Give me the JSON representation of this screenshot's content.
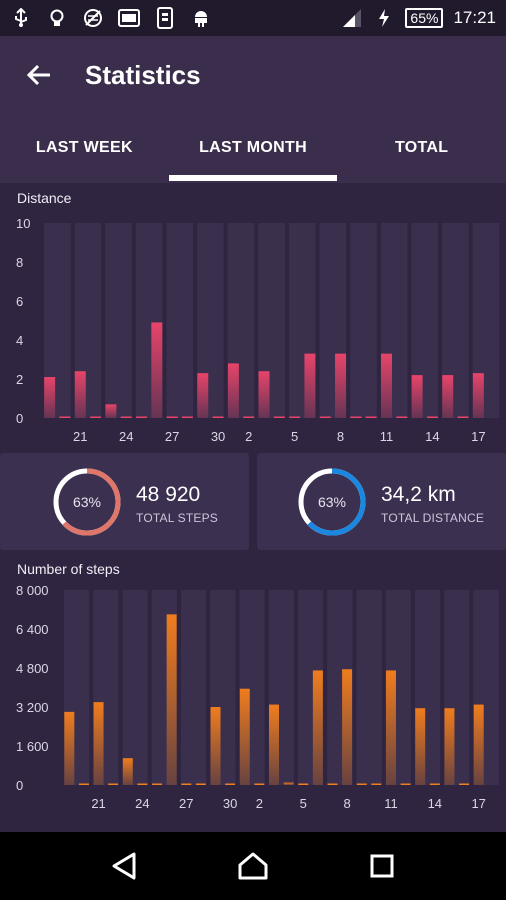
{
  "status_bar": {
    "battery": "65%",
    "time": "17:21",
    "icons": [
      "usb-icon",
      "lightbulb-icon",
      "no-network-icon",
      "fk-app-icon",
      "phone-data-icon",
      "android-icon",
      "signal-icon",
      "charging-icon"
    ]
  },
  "header": {
    "title": "Statistics",
    "back_icon": "arrow-left-icon"
  },
  "tabs": [
    {
      "label": "LAST WEEK",
      "active": false
    },
    {
      "label": "LAST MONTH",
      "active": true
    },
    {
      "label": "TOTAL",
      "active": false
    }
  ],
  "distance_chart": {
    "title": "Distance"
  },
  "steps_chart": {
    "title": "Number of steps"
  },
  "summary": {
    "steps": {
      "percent_label": "63%",
      "value": "48 920",
      "caption": "TOTAL STEPS",
      "color": "#e0766a"
    },
    "distance": {
      "percent_label": "63%",
      "value": "34,2 km",
      "caption": "TOTAL DISTANCE",
      "color": "#1a87e0"
    }
  },
  "nav": {
    "back": "nav-back-icon",
    "home": "nav-home-icon",
    "recents": "nav-recents-icon"
  },
  "chart_data": [
    {
      "type": "bar",
      "title": "Distance",
      "categories": [
        "19",
        "20",
        "21",
        "22",
        "23",
        "24",
        "25",
        "26",
        "27",
        "28",
        "29",
        "30",
        "1",
        "2",
        "3",
        "4",
        "5",
        "6",
        "7",
        "8",
        "9",
        "10",
        "11",
        "12",
        "13",
        "14",
        "15",
        "16",
        "17"
      ],
      "x_tick_labels": [
        "21",
        "24",
        "27",
        "30",
        "2",
        "5",
        "8",
        "11",
        "14",
        "17"
      ],
      "values": [
        2.1,
        0,
        2.4,
        0,
        0.7,
        0,
        0,
        4.9,
        0,
        0,
        2.3,
        0,
        2.8,
        0,
        2.4,
        0,
        0,
        3.3,
        0,
        3.3,
        0,
        0,
        3.3,
        0,
        2.2,
        0,
        2.2,
        0,
        2.3
      ],
      "ylim": [
        0,
        10
      ],
      "y_ticks": [
        "0",
        "2",
        "4",
        "6",
        "8",
        "10"
      ],
      "color": "#e8446a"
    },
    {
      "type": "bar",
      "title": "Number of steps",
      "categories": [
        "19",
        "20",
        "21",
        "22",
        "23",
        "24",
        "25",
        "26",
        "27",
        "28",
        "29",
        "30",
        "1",
        "2",
        "3",
        "4",
        "5",
        "6",
        "7",
        "8",
        "9",
        "10",
        "11",
        "12",
        "13",
        "14",
        "15",
        "16",
        "17"
      ],
      "x_tick_labels": [
        "21",
        "24",
        "27",
        "30",
        "2",
        "5",
        "8",
        "11",
        "14",
        "17"
      ],
      "values": [
        3000,
        0,
        3400,
        0,
        1100,
        0,
        0,
        7000,
        0,
        0,
        3200,
        0,
        3950,
        0,
        3300,
        100,
        0,
        4700,
        0,
        4750,
        0,
        0,
        4700,
        0,
        3150,
        0,
        3150,
        0,
        3300
      ],
      "ylim": [
        0,
        8000
      ],
      "y_ticks": [
        "0",
        "1 600",
        "3 200",
        "4 800",
        "6 400",
        "8 000"
      ],
      "color": "#f07d1e"
    }
  ]
}
